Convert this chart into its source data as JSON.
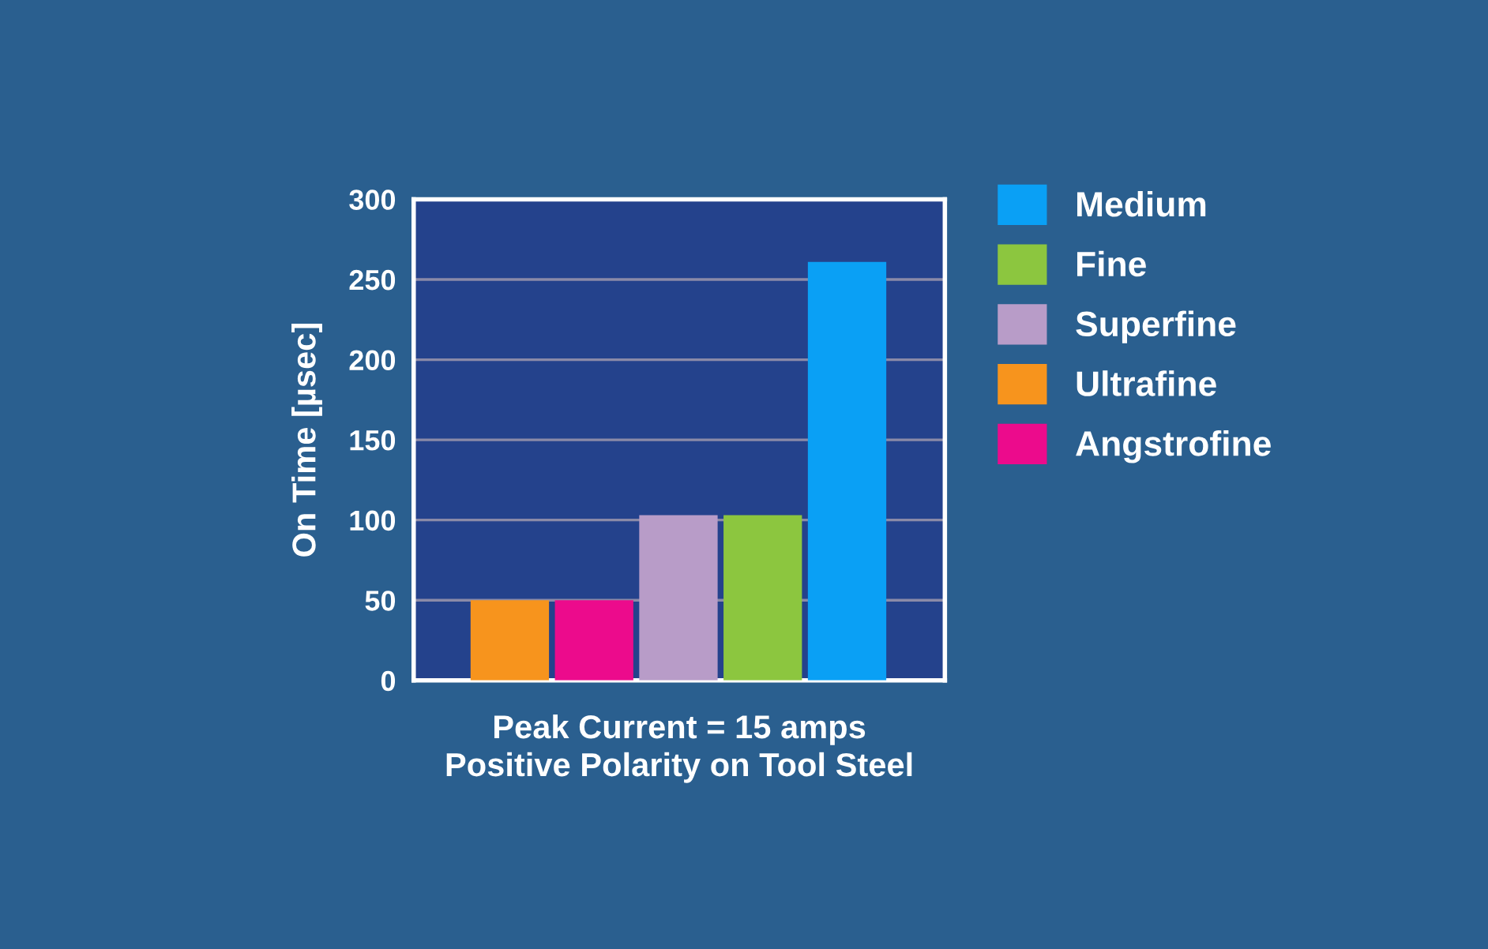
{
  "chart_data": {
    "type": "bar",
    "xlabel": "Peak Current = 15 amps\nPositive Polarity on Tool Steel",
    "ylabel": "On Time [µsec]",
    "categories": [
      null,
      null,
      null,
      null,
      null
    ],
    "series": [
      {
        "name": "Medium",
        "color": "#0aa0f5",
        "values": [
          null,
          null,
          null,
          null,
          261
        ]
      },
      {
        "name": "Fine",
        "color": "#8cc63f",
        "values": [
          null,
          null,
          null,
          103,
          null
        ]
      },
      {
        "name": "Superfine",
        "color": "#b89cc8",
        "values": [
          null,
          null,
          103,
          null,
          null
        ]
      },
      {
        "name": "Ultrafine",
        "color": "#f7941d",
        "values": [
          50,
          null,
          null,
          null,
          null
        ]
      },
      {
        "name": "Angstrofine",
        "color": "#ec0b8c",
        "values": [
          null,
          50,
          null,
          null,
          null
        ]
      }
    ],
    "ylim": [
      0,
      300
    ],
    "yticks": [
      0,
      50,
      100,
      150,
      200,
      250,
      300
    ],
    "grid": "y",
    "legend": "right"
  }
}
